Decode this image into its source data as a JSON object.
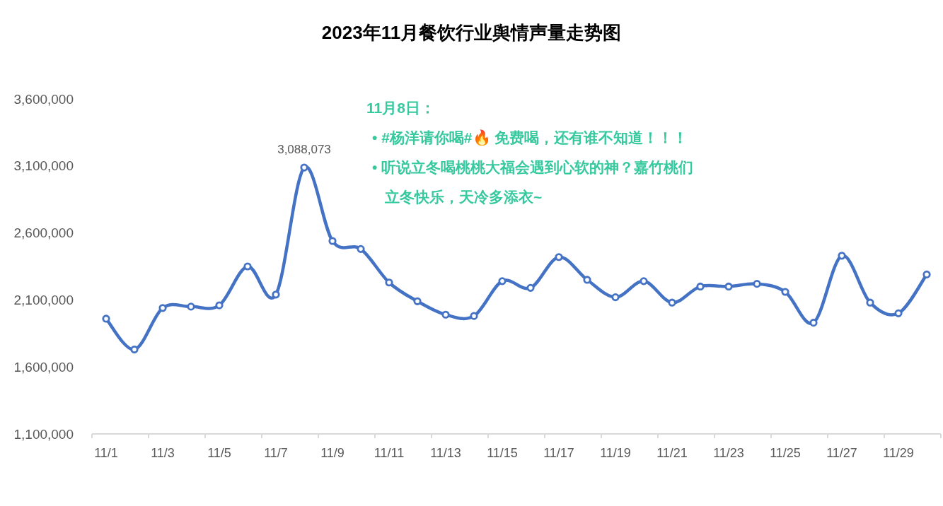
{
  "chart_data": {
    "type": "line",
    "title": "2023年11月餐饮行业舆情声量走势图",
    "categories": [
      "11/1",
      null,
      "11/3",
      null,
      "11/5",
      null,
      "11/7",
      null,
      "11/9",
      null,
      "11/11",
      null,
      "11/13",
      null,
      "11/15",
      null,
      "11/17",
      null,
      "11/19",
      null,
      "11/21",
      null,
      "11/23",
      null,
      "11/25",
      null,
      "11/27",
      null,
      "11/29",
      null
    ],
    "series": [
      {
        "color": "#4472c4",
        "values": [
          1960000,
          1730000,
          2040000,
          2050000,
          2060000,
          2350000,
          2140000,
          3088073,
          2540000,
          2480000,
          2230000,
          2090000,
          1990000,
          1980000,
          2240000,
          2190000,
          2420000,
          2250000,
          2120000,
          2240000,
          2080000,
          2200000,
          2200000,
          2220000,
          2160000,
          1930000,
          2430000,
          2080000,
          2000000,
          2290000
        ],
        "value_labels": [
          null,
          null,
          null,
          null,
          null,
          null,
          null,
          "3,088,073",
          null,
          null,
          null,
          null,
          null,
          null,
          null,
          null,
          null,
          null,
          null,
          null,
          null,
          null,
          null,
          null,
          null,
          null,
          null,
          null,
          null,
          null
        ]
      }
    ],
    "ylim": [
      1100000,
      3600000
    ],
    "yticks": [
      {
        "value": 1100000,
        "label": "1,100,000"
      },
      {
        "value": 1600000,
        "label": "1,600,000"
      },
      {
        "value": 2100000,
        "label": "2,100,000"
      },
      {
        "value": 2600000,
        "label": "2,600,000"
      },
      {
        "value": 3100000,
        "label": "3,100,000"
      },
      {
        "value": 3600000,
        "label": "3,600,000"
      }
    ],
    "marker": "circle",
    "line_style": "solid",
    "annotations": [
      "11月8日：",
      "• #杨洋请你喝#🔥 免费喝，还有谁不知道！！！",
      "• 听说立冬喝桃桃大福会遇到心软的神？嘉竹桃们立冬快乐，天冷多添衣~"
    ]
  }
}
